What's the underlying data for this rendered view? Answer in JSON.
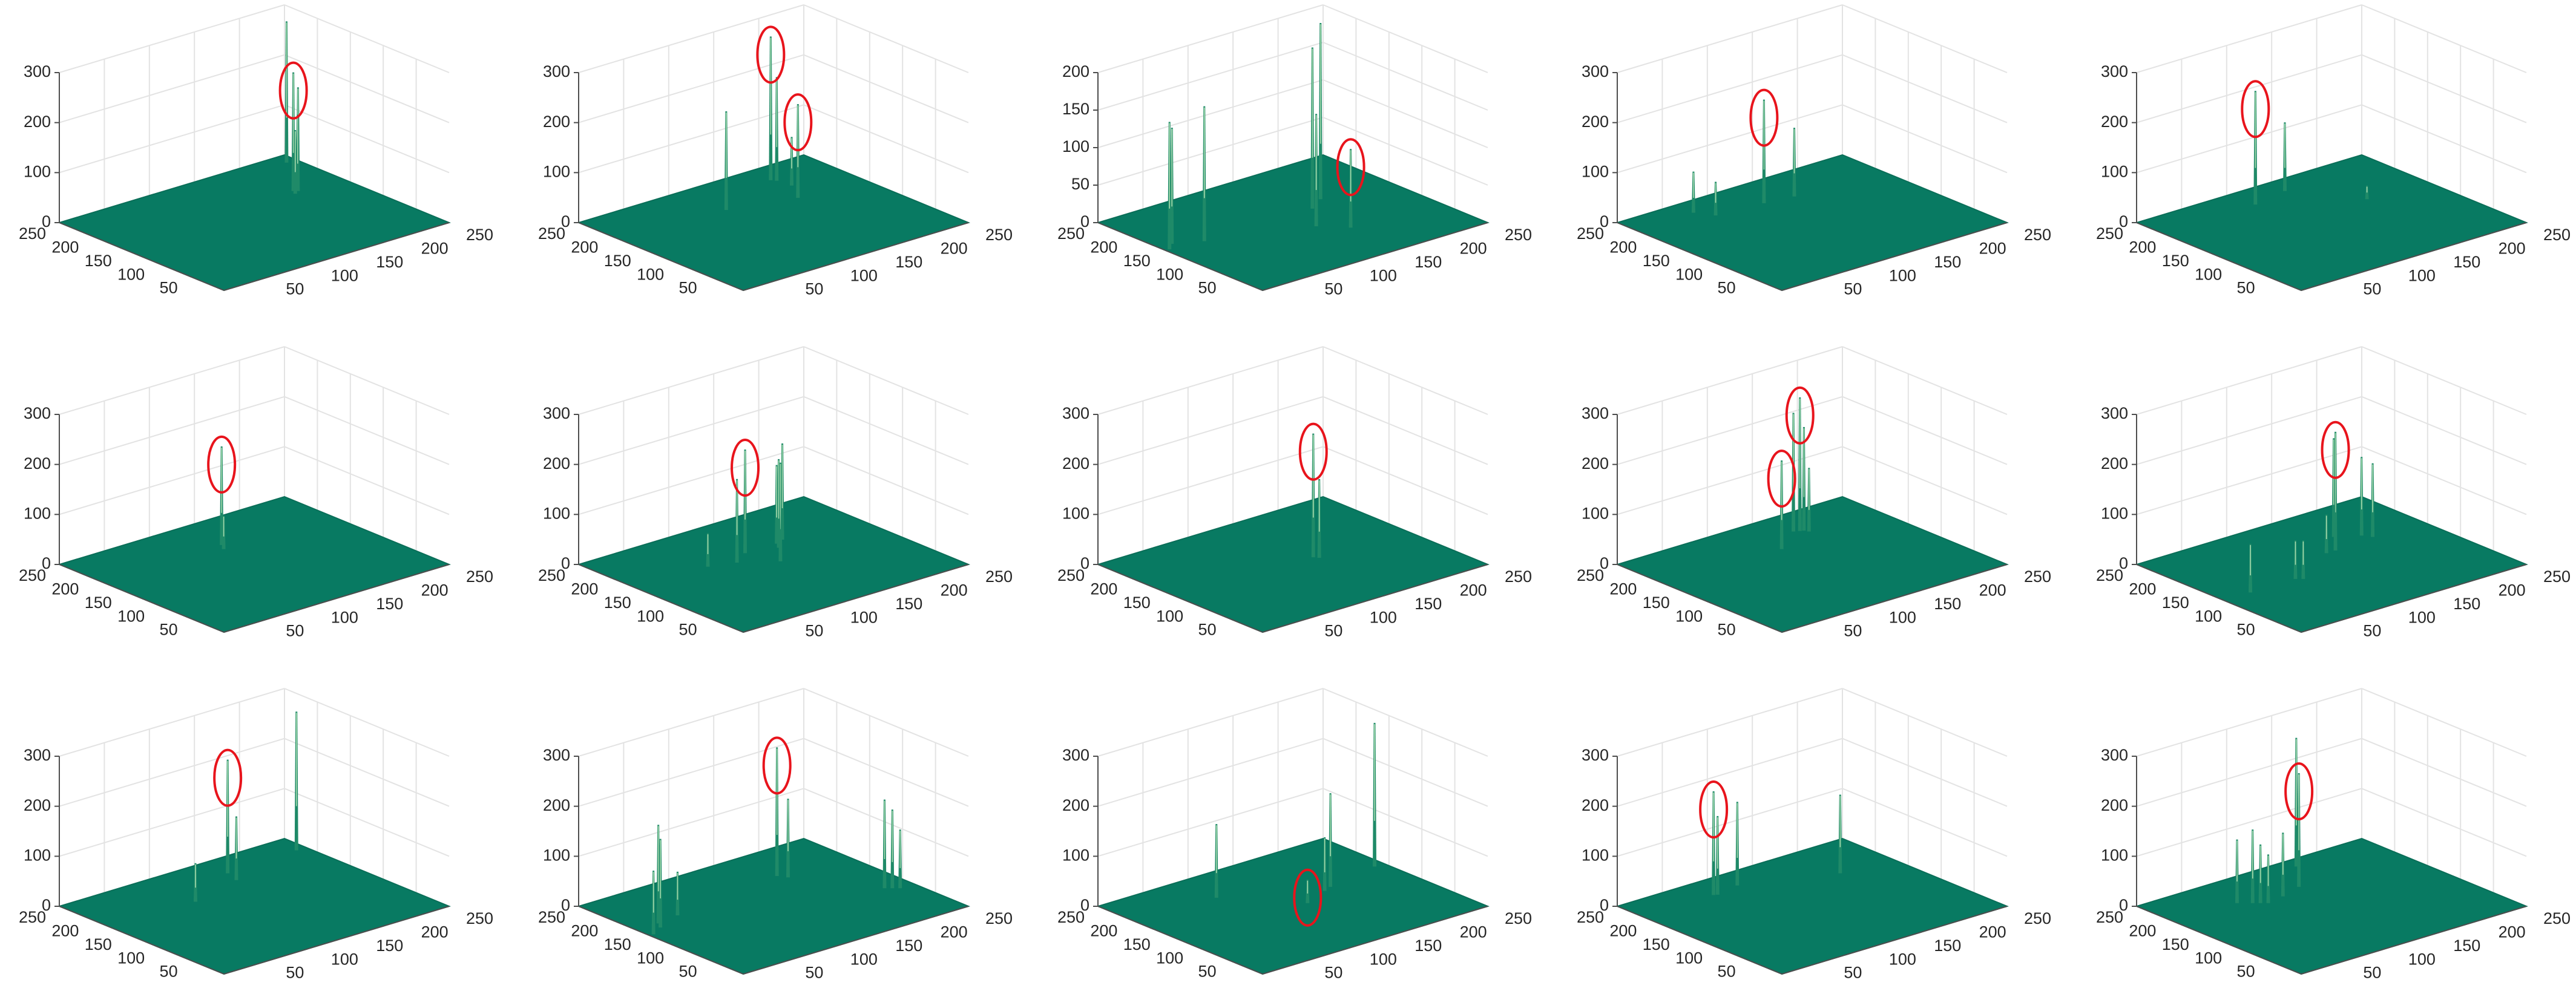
{
  "colors": {
    "surface": "#087a62",
    "surface_edge": "#0a6e58",
    "spike": "#1f8a68",
    "spike_highlight": "#c8f0c0",
    "grid": "#e3e3e3",
    "axis": "#4d4d4d",
    "marker": "#e8141c",
    "background": "#ffffff"
  },
  "chart_data": [
    {
      "type": "surface3d",
      "zlim": [
        0,
        300
      ],
      "zticks": [
        "0",
        "100",
        "200",
        "300"
      ],
      "xticks": [
        "50",
        "100",
        "150",
        "200",
        "250"
      ],
      "yticks": [
        "50",
        "100",
        "150",
        "200",
        "250"
      ],
      "grid": true,
      "spikes": [
        {
          "x": 245,
          "y": 240,
          "z": 275
        },
        {
          "x": 205,
          "y": 175,
          "z": 230
        },
        {
          "x": 208,
          "y": 172,
          "z": 200
        },
        {
          "x": 212,
          "y": 178,
          "z": 140
        },
        {
          "x": 202,
          "y": 168,
          "z": 120
        }
      ],
      "highlighted": [
        {
          "x": 205,
          "y": 175,
          "z": 230
        }
      ]
    },
    {
      "type": "surface3d",
      "zlim": [
        0,
        300
      ],
      "zticks": [
        "0",
        "100",
        "200",
        "300"
      ],
      "xticks": [
        "50",
        "100",
        "150",
        "200",
        "250"
      ],
      "yticks": [
        "50",
        "100",
        "150",
        "200",
        "250"
      ],
      "grid": true,
      "spikes": [
        {
          "x": 120,
          "y": 190,
          "z": 190
        },
        {
          "x": 195,
          "y": 225,
          "z": 280
        },
        {
          "x": 198,
          "y": 220,
          "z": 200
        },
        {
          "x": 185,
          "y": 170,
          "z": 180
        },
        {
          "x": 200,
          "y": 200,
          "z": 90
        }
      ],
      "highlighted": [
        {
          "x": 195,
          "y": 225,
          "z": 280
        },
        {
          "x": 185,
          "y": 170,
          "z": 180
        }
      ]
    },
    {
      "type": "surface3d",
      "zlim": [
        0,
        200
      ],
      "zticks": [
        "0",
        "50",
        "100",
        "150",
        "200"
      ],
      "xticks": [
        "50",
        "100",
        "150",
        "200",
        "250"
      ],
      "yticks": [
        "50",
        "100",
        "150",
        "200",
        "250"
      ],
      "grid": true,
      "spikes": [
        {
          "x": 10,
          "y": 155,
          "z": 165
        },
        {
          "x": 20,
          "y": 165,
          "z": 150
        },
        {
          "x": 45,
          "y": 150,
          "z": 175
        },
        {
          "x": 140,
          "y": 110,
          "z": 145
        },
        {
          "x": 160,
          "y": 85,
          "z": 100
        },
        {
          "x": 165,
          "y": 150,
          "z": 210
        },
        {
          "x": 185,
          "y": 165,
          "z": 230
        }
      ],
      "highlighted": [
        {
          "x": 160,
          "y": 85,
          "z": 100
        }
      ]
    },
    {
      "type": "surface3d",
      "zlim": [
        0,
        300
      ],
      "zticks": [
        "0",
        "100",
        "200",
        "300"
      ],
      "xticks": [
        "50",
        "100",
        "150",
        "200",
        "250"
      ],
      "yticks": [
        "50",
        "100",
        "150",
        "200",
        "250"
      ],
      "grid": true,
      "spikes": [
        {
          "x": 130,
          "y": 205,
          "z": 200
        },
        {
          "x": 160,
          "y": 200,
          "z": 130
        },
        {
          "x": 70,
          "y": 230,
          "z": 75
        },
        {
          "x": 80,
          "y": 210,
          "z": 60
        }
      ],
      "highlighted": [
        {
          "x": 130,
          "y": 205,
          "z": 200
        }
      ]
    },
    {
      "type": "surface3d",
      "zlim": [
        0,
        300
      ],
      "zticks": [
        "0",
        "100",
        "200",
        "300"
      ],
      "xticks": [
        "50",
        "100",
        "150",
        "200",
        "250"
      ],
      "yticks": [
        "50",
        "100",
        "150",
        "200",
        "250"
      ],
      "grid": true,
      "spikes": [
        {
          "x": 110,
          "y": 220,
          "z": 220
        },
        {
          "x": 150,
          "y": 230,
          "z": 130
        },
        {
          "x": 190,
          "y": 160,
          "z": 20
        }
      ],
      "highlighted": [
        {
          "x": 110,
          "y": 220,
          "z": 220
        }
      ]
    },
    {
      "type": "surface3d",
      "zlim": [
        0,
        300
      ],
      "zticks": [
        "0",
        "100",
        "200",
        "300"
      ],
      "xticks": [
        "50",
        "100",
        "150",
        "200",
        "250"
      ],
      "yticks": [
        "50",
        "100",
        "150",
        "200",
        "250"
      ],
      "grid": true,
      "spikes": [
        {
          "x": 140,
          "y": 195,
          "z": 190
        },
        {
          "x": 135,
          "y": 185,
          "z": 60
        }
      ],
      "highlighted": [
        {
          "x": 140,
          "y": 195,
          "z": 190
        }
      ]
    },
    {
      "type": "surface3d",
      "zlim": [
        0,
        300
      ],
      "zticks": [
        "0",
        "100",
        "200",
        "300"
      ],
      "xticks": [
        "50",
        "100",
        "150",
        "200",
        "250"
      ],
      "yticks": [
        "50",
        "100",
        "150",
        "200",
        "250"
      ],
      "grid": true,
      "spikes": [
        {
          "x": 130,
          "y": 175,
          "z": 200
        },
        {
          "x": 140,
          "y": 135,
          "z": 190
        },
        {
          "x": 110,
          "y": 160,
          "z": 160
        },
        {
          "x": 160,
          "y": 165,
          "z": 170
        },
        {
          "x": 165,
          "y": 175,
          "z": 150
        },
        {
          "x": 175,
          "y": 180,
          "z": 185
        },
        {
          "x": 85,
          "y": 170,
          "z": 60
        }
      ],
      "highlighted": [
        {
          "x": 130,
          "y": 175,
          "z": 200
        }
      ]
    },
    {
      "type": "surface3d",
      "zlim": [
        0,
        300
      ],
      "zticks": [
        "0",
        "100",
        "200",
        "300"
      ],
      "xticks": [
        "50",
        "100",
        "150",
        "200",
        "250"
      ],
      "yticks": [
        "50",
        "100",
        "150",
        "200",
        "250"
      ],
      "grid": true,
      "spikes": [
        {
          "x": 155,
          "y": 135,
          "z": 240
        },
        {
          "x": 158,
          "y": 130,
          "z": 150
        }
      ],
      "highlighted": [
        {
          "x": 155,
          "y": 135,
          "z": 240
        }
      ]
    },
    {
      "type": "surface3d",
      "zlim": [
        0,
        300
      ],
      "zticks": [
        "0",
        "100",
        "200",
        "300"
      ],
      "xticks": [
        "50",
        "100",
        "150",
        "200",
        "250"
      ],
      "yticks": [
        "50",
        "100",
        "150",
        "200",
        "250"
      ],
      "grid": true,
      "spikes": [
        {
          "x": 170,
          "y": 215,
          "z": 230
        },
        {
          "x": 175,
          "y": 212,
          "z": 260
        },
        {
          "x": 178,
          "y": 210,
          "z": 200
        },
        {
          "x": 135,
          "y": 185,
          "z": 170
        },
        {
          "x": 180,
          "y": 205,
          "z": 120
        }
      ],
      "highlighted": [
        {
          "x": 135,
          "y": 185,
          "z": 170
        },
        {
          "x": 175,
          "y": 212,
          "z": 260
        }
      ]
    },
    {
      "type": "surface3d",
      "zlim": [
        0,
        300
      ],
      "zticks": [
        "0",
        "100",
        "200",
        "300"
      ],
      "xticks": [
        "50",
        "100",
        "150",
        "200",
        "250"
      ],
      "yticks": [
        "50",
        "100",
        "150",
        "200",
        "250"
      ],
      "grid": true,
      "spikes": [
        {
          "x": 35,
          "y": 125,
          "z": 90
        },
        {
          "x": 85,
          "y": 125,
          "z": 70
        },
        {
          "x": 90,
          "y": 120,
          "z": 70
        },
        {
          "x": 155,
          "y": 160,
          "z": 230
        },
        {
          "x": 145,
          "y": 160,
          "z": 70
        },
        {
          "x": 175,
          "y": 190,
          "z": 190
        },
        {
          "x": 195,
          "y": 175,
          "z": 150
        },
        {
          "x": 200,
          "y": 165,
          "z": 140
        }
      ],
      "highlighted": [
        {
          "x": 155,
          "y": 160,
          "z": 230
        }
      ]
    },
    {
      "type": "surface3d",
      "zlim": [
        0,
        300
      ],
      "zticks": [
        "0",
        "100",
        "200",
        "300"
      ],
      "xticks": [
        "50",
        "100",
        "150",
        "200",
        "250"
      ],
      "yticks": [
        "50",
        "100",
        "150",
        "200",
        "250"
      ],
      "grid": true,
      "spikes": [
        {
          "x": 245,
          "y": 225,
          "z": 270
        },
        {
          "x": 165,
          "y": 220,
          "z": 220
        },
        {
          "x": 160,
          "y": 200,
          "z": 120
        },
        {
          "x": 100,
          "y": 180,
          "z": 70
        }
      ],
      "highlighted": [
        {
          "x": 165,
          "y": 220,
          "z": 220
        }
      ]
    },
    {
      "type": "surface3d",
      "zlim": [
        0,
        300
      ],
      "zticks": [
        "0",
        "100",
        "200",
        "300"
      ],
      "xticks": [
        "50",
        "100",
        "150",
        "200",
        "250"
      ],
      "yticks": [
        "50",
        "100",
        "150",
        "200",
        "250"
      ],
      "grid": true,
      "spikes": [
        {
          "x": 10,
          "y": 150,
          "z": 120
        },
        {
          "x": 25,
          "y": 160,
          "z": 170
        },
        {
          "x": 30,
          "y": 170,
          "z": 190
        },
        {
          "x": 55,
          "y": 175,
          "z": 80
        },
        {
          "x": 180,
          "y": 195,
          "z": 250
        },
        {
          "x": 185,
          "y": 185,
          "z": 150
        },
        {
          "x": 230,
          "y": 100,
          "z": 170
        },
        {
          "x": 235,
          "y": 95,
          "z": 150
        },
        {
          "x": 240,
          "y": 90,
          "z": 110
        }
      ],
      "highlighted": [
        {
          "x": 180,
          "y": 195,
          "z": 250
        }
      ]
    },
    {
      "type": "surface3d",
      "zlim": [
        0,
        300
      ],
      "zticks": [
        "0",
        "100",
        "200",
        "300"
      ],
      "xticks": [
        "50",
        "100",
        "150",
        "200",
        "250"
      ],
      "yticks": [
        "50",
        "100",
        "150",
        "200",
        "250"
      ],
      "grid": true,
      "spikes": [
        {
          "x": 95,
          "y": 200,
          "z": 140
        },
        {
          "x": 145,
          "y": 130,
          "z": 40
        },
        {
          "x": 175,
          "y": 145,
          "z": 100
        },
        {
          "x": 185,
          "y": 150,
          "z": 180
        },
        {
          "x": 245,
          "y": 165,
          "z": 280
        }
      ],
      "highlighted": [
        {
          "x": 145,
          "y": 130,
          "z": 40
        }
      ]
    },
    {
      "type": "surface3d",
      "zlim": [
        0,
        300
      ],
      "zticks": [
        "0",
        "100",
        "200",
        "300"
      ],
      "xticks": [
        "50",
        "100",
        "150",
        "200",
        "250"
      ],
      "yticks": [
        "50",
        "100",
        "150",
        "200",
        "250"
      ],
      "grid": true,
      "spikes": [
        {
          "x": 85,
          "y": 220,
          "z": 200
        },
        {
          "x": 88,
          "y": 218,
          "z": 150
        },
        {
          "x": 115,
          "y": 225,
          "z": 160
        },
        {
          "x": 200,
          "y": 185,
          "z": 150
        }
      ],
      "highlighted": [
        {
          "x": 85,
          "y": 220,
          "z": 200
        }
      ]
    },
    {
      "type": "surface3d",
      "zlim": [
        0,
        300
      ],
      "zticks": [
        "0",
        "100",
        "200",
        "300"
      ],
      "xticks": [
        "50",
        "100",
        "150",
        "200",
        "250"
      ],
      "yticks": [
        "50",
        "100",
        "150",
        "200",
        "250"
      ],
      "grid": true,
      "spikes": [
        {
          "x": 140,
          "y": 195,
          "z": 220
        },
        {
          "x": 170,
          "y": 240,
          "z": 250
        },
        {
          "x": 75,
          "y": 200,
          "z": 120
        },
        {
          "x": 85,
          "y": 190,
          "z": 140
        },
        {
          "x": 90,
          "y": 185,
          "z": 110
        },
        {
          "x": 115,
          "y": 185,
          "z": 120
        },
        {
          "x": 95,
          "y": 180,
          "z": 90
        }
      ],
      "highlighted": [
        {
          "x": 140,
          "y": 195,
          "z": 220
        }
      ]
    }
  ]
}
